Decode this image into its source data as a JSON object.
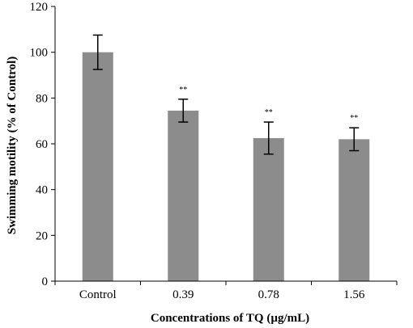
{
  "chart_data": {
    "type": "bar",
    "categories": [
      "Control",
      "0.39",
      "0.78",
      "1.56"
    ],
    "values": [
      100,
      74.5,
      62.5,
      62
    ],
    "error": [
      7.5,
      5,
      7,
      5
    ],
    "annotations": [
      "",
      "**",
      "**",
      "**"
    ],
    "title": "",
    "xlabel": "Concentrations of TQ (µg/mL)",
    "ylabel": "Swimming motility (% of Control)",
    "ylim": [
      0,
      120
    ],
    "yticks": [
      0,
      20,
      40,
      60,
      80,
      100,
      120
    ],
    "grid": false,
    "legend": "none",
    "bar_color": "#8c8c8c"
  }
}
